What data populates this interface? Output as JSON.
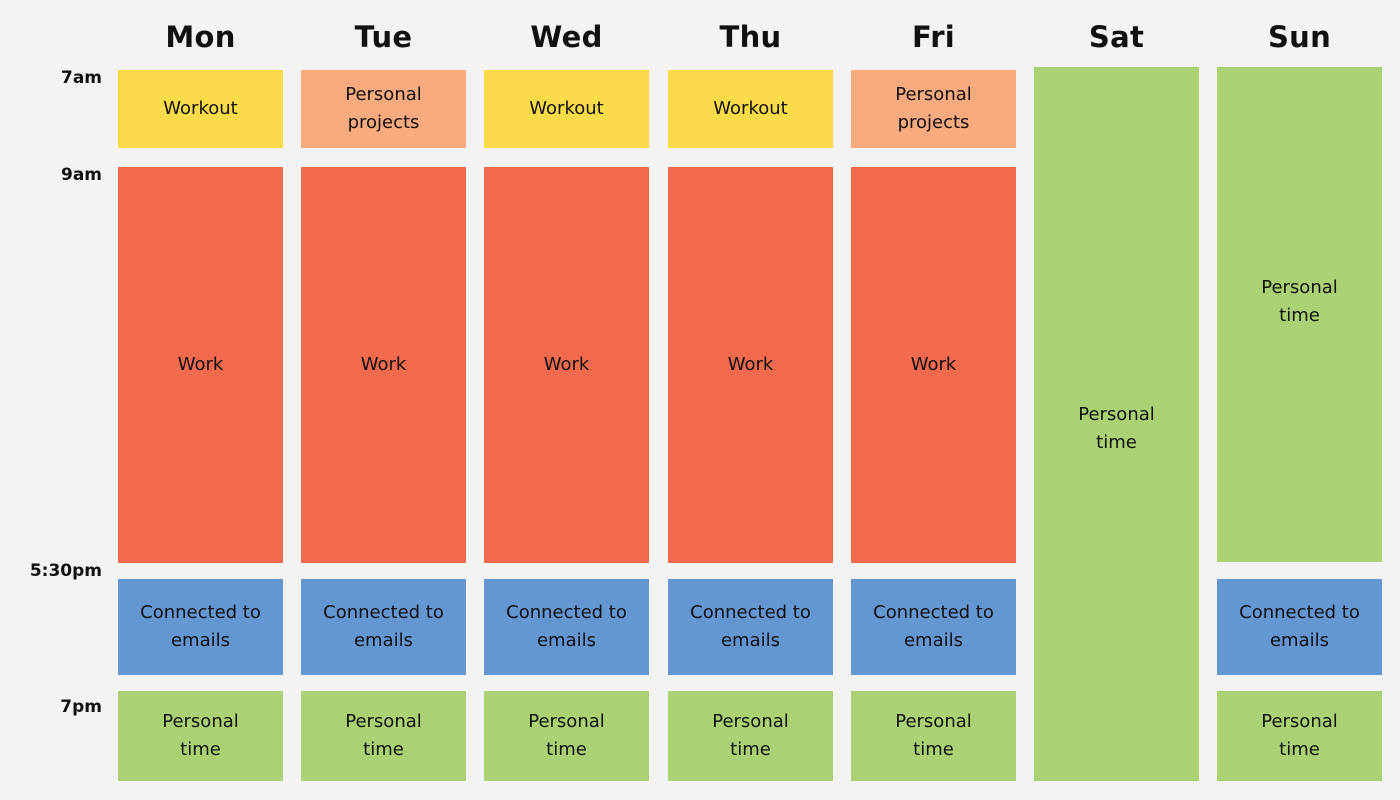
{
  "days": [
    "Mon",
    "Tue",
    "Wed",
    "Thu",
    "Fri",
    "Sat",
    "Sun"
  ],
  "times": [
    "7am",
    "9am",
    "5:30pm",
    "7pm"
  ],
  "colors": {
    "workout": "#fadc4a",
    "personal_projects": "#f9ab7f",
    "work": "#f26b4f",
    "emails": "#6496d2",
    "personal_time": "#aad274"
  },
  "schedule": {
    "mon": {
      "early": "Workout",
      "work": "Work",
      "emails": "Connected to\nemails",
      "evening": "Personal\ntime"
    },
    "tue": {
      "early": "Personal\nprojects",
      "work": "Work",
      "emails": "Connected to\nemails",
      "evening": "Personal\ntime"
    },
    "wed": {
      "early": "Workout",
      "work": "Work",
      "emails": "Connected to\nemails",
      "evening": "Personal\ntime"
    },
    "thu": {
      "early": "Workout",
      "work": "Work",
      "emails": "Connected to\nemails",
      "evening": "Personal\ntime"
    },
    "fri": {
      "early": "Personal\nprojects",
      "work": "Work",
      "emails": "Connected to\nemails",
      "evening": "Personal\ntime"
    },
    "sat": {
      "all_day": "Personal\ntime"
    },
    "sun": {
      "day": "Personal\ntime",
      "emails": "Connected to\nemails",
      "evening": "Personal\ntime"
    }
  }
}
